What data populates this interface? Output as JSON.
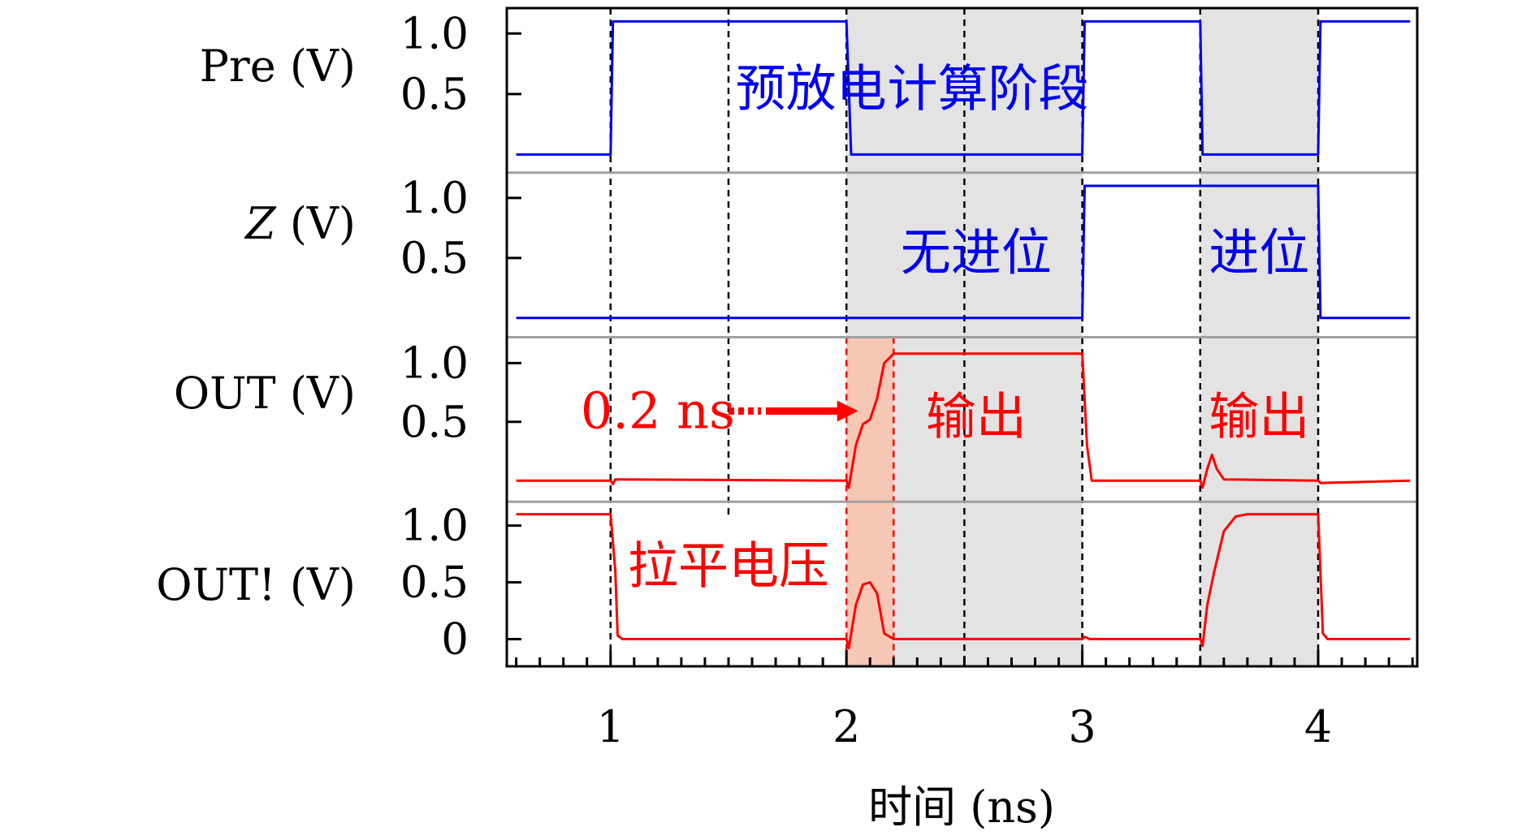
{
  "chart_data": {
    "type": "line",
    "xlabel": "时间 (ns)",
    "xlim": [
      0.56,
      4.42
    ],
    "xticks": [
      1,
      2,
      3,
      4
    ],
    "xtick_labels": [
      "1",
      "2",
      "3",
      "4"
    ],
    "vlines_dashed": [
      1,
      1.5,
      2,
      2.5,
      3,
      3.5,
      4
    ],
    "shaded_regions": [
      {
        "x": [
          2.0,
          3.0
        ],
        "color": "#e3e3e3",
        "panels": "all"
      },
      {
        "x": [
          3.5,
          4.0
        ],
        "color": "#e3e3e3",
        "panels": "all"
      },
      {
        "x": [
          2.0,
          2.2
        ],
        "color": "#f6c7b5",
        "panels": [
          "OUT",
          "OUT!"
        ]
      }
    ],
    "panels": [
      {
        "ylabel": "Pre (V)",
        "ylim": [
          -0.15,
          1.21
        ],
        "ytick_values": [
          1.0,
          0.5
        ],
        "ytick_labels": [
          "1.0",
          "0.5"
        ],
        "color": "#0000ee",
        "x": [
          0.6,
          1.0,
          1.01,
          2.0,
          2.02,
          3.0,
          3.01,
          3.5,
          3.51,
          4.0,
          4.01,
          4.39
        ],
        "y": [
          0,
          0,
          1.1,
          1.1,
          0,
          0,
          1.1,
          1.1,
          0,
          0,
          1.1,
          1.1
        ]
      },
      {
        "ylabel": "Z (V)",
        "ylim": [
          -0.16,
          1.21
        ],
        "ytick_values": [
          1.0,
          0.5
        ],
        "ytick_labels": [
          "1.0",
          "0.5"
        ],
        "color": "#0000ee",
        "x": [
          0.6,
          3.0,
          3.01,
          4.0,
          4.01,
          4.39
        ],
        "y": [
          0,
          0,
          1.1,
          1.1,
          0,
          0
        ]
      },
      {
        "ylabel": "OUT (V)",
        "ylim": [
          -0.18,
          1.22
        ],
        "ytick_values": [
          1.0,
          0.5
        ],
        "ytick_labels": [
          "1.0",
          "0.5"
        ],
        "color": "#ff0000",
        "x": [
          0.6,
          1.0,
          1.01,
          1.02,
          2.0,
          2.01,
          2.04,
          2.07,
          2.1,
          2.13,
          2.16,
          2.2,
          3.0,
          3.02,
          3.04,
          3.5,
          3.51,
          3.53,
          3.55,
          3.57,
          3.6,
          4.0,
          4.01,
          4.39
        ],
        "y": [
          0.0,
          0.0,
          -0.03,
          0.01,
          0.0,
          -0.06,
          0.3,
          0.48,
          0.52,
          0.7,
          1.0,
          1.08,
          1.08,
          0.3,
          0.0,
          0.0,
          -0.06,
          0.1,
          0.22,
          0.1,
          0.01,
          0.0,
          -0.02,
          0.0
        ]
      },
      {
        "ylabel": "OUT! (V)",
        "ylim": [
          -0.24,
          1.21
        ],
        "ytick_values": [
          1.0,
          0.5,
          0
        ],
        "ytick_labels": [
          "1.0",
          "0.5",
          "0"
        ],
        "color": "#ff0000",
        "x": [
          0.6,
          1.0,
          1.02,
          1.03,
          1.05,
          2.0,
          2.01,
          2.04,
          2.07,
          2.1,
          2.13,
          2.16,
          2.2,
          3.0,
          3.01,
          3.03,
          3.5,
          3.51,
          3.53,
          3.56,
          3.6,
          3.65,
          3.7,
          4.0,
          4.02,
          4.04,
          4.39
        ],
        "y": [
          1.1,
          1.1,
          0.6,
          0.03,
          0.0,
          0.0,
          -0.08,
          0.3,
          0.48,
          0.5,
          0.4,
          0.05,
          0.0,
          0.0,
          0.02,
          0.0,
          0.0,
          -0.06,
          0.3,
          0.6,
          0.95,
          1.08,
          1.1,
          1.1,
          0.05,
          0.0,
          0.0
        ]
      }
    ],
    "annotations": [
      {
        "text": "预放电",
        "x": 1.85,
        "panel": 0,
        "y": 0.55,
        "color": "#0000ee"
      },
      {
        "text": "计算阶段",
        "x": 2.6,
        "panel": 0,
        "y": 0.55,
        "color": "#0000ee"
      },
      {
        "text": "无进位",
        "x": 2.55,
        "panel": 1,
        "y": 0.55,
        "color": "#0000ee"
      },
      {
        "text": "进位",
        "x": 3.75,
        "panel": 1,
        "y": 0.55,
        "color": "#0000ee"
      },
      {
        "text": "0.2 ns",
        "x": 1.2,
        "panel": 2,
        "y": 0.6,
        "color": "#ff0000"
      },
      {
        "text": "输出",
        "x": 2.55,
        "panel": 2,
        "y": 0.55,
        "color": "#ff0000"
      },
      {
        "text": "输出",
        "x": 3.75,
        "panel": 2,
        "y": 0.55,
        "color": "#ff0000"
      },
      {
        "text": "拉平电压",
        "x": 1.5,
        "panel": 3,
        "y": 0.65,
        "color": "#ff0000"
      }
    ],
    "arrow": {
      "from_x": 1.5,
      "to_x": 2.05,
      "panel": 2,
      "y": 0.55,
      "color": "#ff0000"
    }
  }
}
